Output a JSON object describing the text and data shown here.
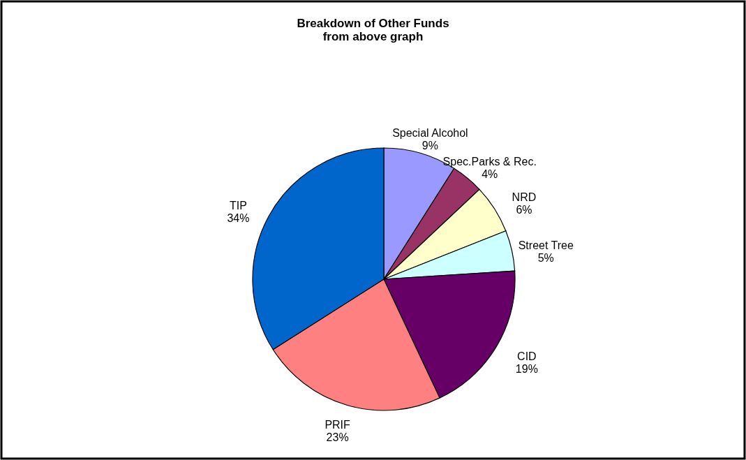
{
  "chart_data": {
    "type": "pie",
    "title": "Breakdown of Other Funds\nfrom above graph",
    "categories": [
      "Special Alcohol",
      "Spec.Parks & Rec.",
      "NRD",
      "Street Tree",
      "CID",
      "PRIF",
      "TIP"
    ],
    "values": [
      9,
      4,
      6,
      5,
      19,
      23,
      34
    ],
    "value_labels": [
      "9%",
      "4%",
      "6%",
      "5%",
      "19%",
      "23%",
      "34%"
    ],
    "colors": [
      "#9999ff",
      "#993366",
      "#ffffcc",
      "#ccffff",
      "#660066",
      "#ff8080",
      "#0066cc"
    ]
  }
}
